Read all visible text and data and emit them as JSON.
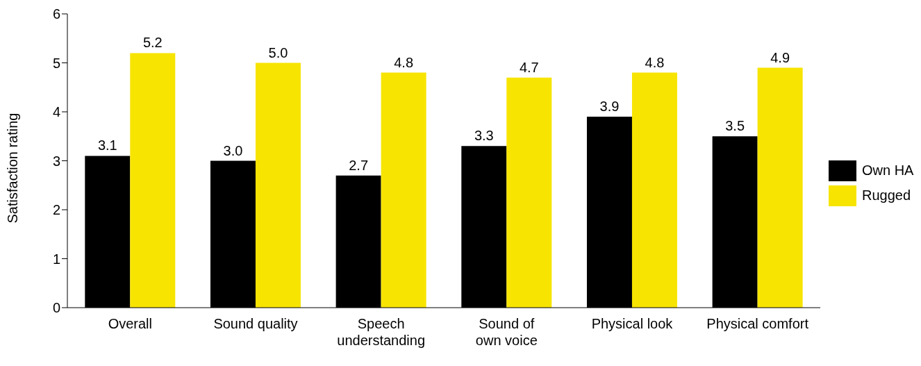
{
  "chart_data": {
    "type": "bar",
    "ylabel": "Satisfaction rating",
    "categories": [
      "Overall",
      "Sound quality",
      "Speech understanding",
      "Sound of own voice",
      "Physical look",
      "Physical comfort"
    ],
    "series": [
      {
        "name": "Own HA",
        "color": "#000000",
        "values": [
          3.1,
          3.0,
          2.7,
          3.3,
          3.9,
          3.5
        ],
        "value_labels": [
          "3.1",
          "3.0",
          "2.7",
          "3.3",
          "3.9",
          "3.5"
        ]
      },
      {
        "name": "Rugged",
        "color": "#f7e400",
        "values": [
          5.2,
          5.0,
          4.8,
          4.7,
          4.8,
          4.9
        ],
        "value_labels": [
          "5.2",
          "5.0",
          "4.8",
          "4.7",
          "4.8",
          "4.9"
        ]
      }
    ],
    "ylim": [
      0,
      6
    ],
    "yticks": [
      0,
      1,
      2,
      3,
      4,
      5,
      6
    ],
    "grid": false,
    "legend": "right"
  }
}
